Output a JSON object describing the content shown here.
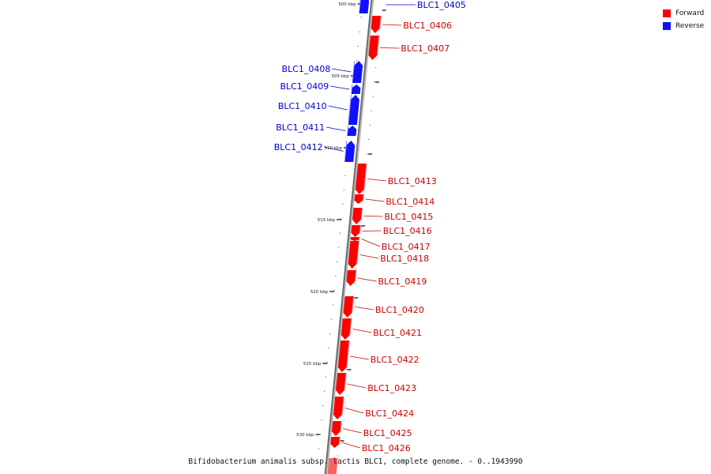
{
  "title": "Bifidobacterium animalis subsp. lactis BLC1, complete genome. - 0..1943990",
  "colors": {
    "forward": "#ff0000",
    "reverse": "#1010ff",
    "forward_label": "#cc0000",
    "reverse_label": "#0000cc",
    "backbone": "#888888"
  },
  "legend": [
    {
      "label": "Forward",
      "color": "#ff0000"
    },
    {
      "label": "Reverse",
      "color": "#1010ff"
    }
  ],
  "ticks": [
    "500 kbp",
    "505 kbp",
    "510 kbp",
    "515 kbp",
    "520 kbp",
    "525 kbp",
    "530 kbp"
  ],
  "genes": [
    {
      "name": "BLC1_0405",
      "strand": "reverse"
    },
    {
      "name": "BLC1_0406",
      "strand": "forward"
    },
    {
      "name": "BLC1_0407",
      "strand": "forward"
    },
    {
      "name": "BLC1_0408",
      "strand": "reverse"
    },
    {
      "name": "BLC1_0409",
      "strand": "reverse"
    },
    {
      "name": "BLC1_0410",
      "strand": "reverse"
    },
    {
      "name": "BLC1_0411",
      "strand": "reverse"
    },
    {
      "name": "BLC1_0412",
      "strand": "reverse"
    },
    {
      "name": "BLC1_0413",
      "strand": "forward"
    },
    {
      "name": "BLC1_0414",
      "strand": "forward"
    },
    {
      "name": "BLC1_0415",
      "strand": "forward"
    },
    {
      "name": "BLC1_0416",
      "strand": "forward"
    },
    {
      "name": "BLC1_0417",
      "strand": "forward"
    },
    {
      "name": "BLC1_0418",
      "strand": "forward"
    },
    {
      "name": "BLC1_0419",
      "strand": "forward"
    },
    {
      "name": "BLC1_0420",
      "strand": "forward"
    },
    {
      "name": "BLC1_0421",
      "strand": "forward"
    },
    {
      "name": "BLC1_0422",
      "strand": "forward"
    },
    {
      "name": "BLC1_0423",
      "strand": "forward"
    },
    {
      "name": "BLC1_0424",
      "strand": "forward"
    },
    {
      "name": "BLC1_0425",
      "strand": "forward"
    },
    {
      "name": "BLC1_0426",
      "strand": "forward"
    }
  ]
}
